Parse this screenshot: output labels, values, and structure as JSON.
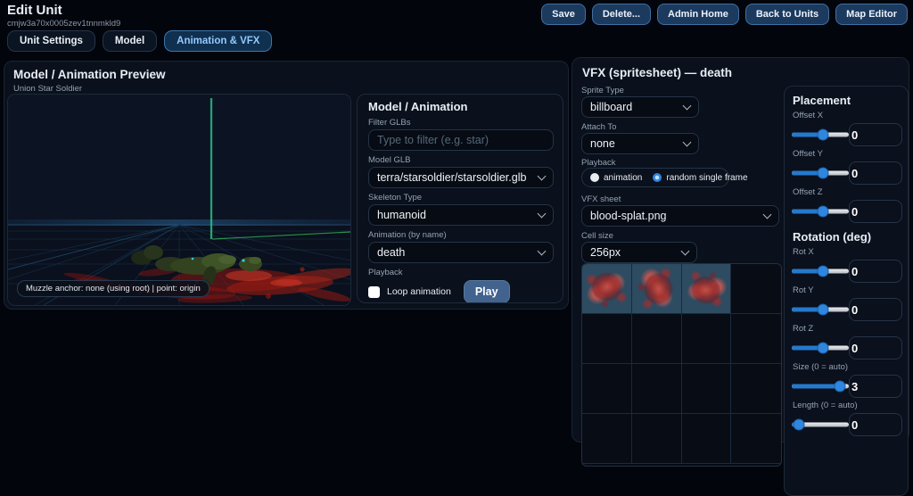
{
  "header": {
    "title": "Edit Unit",
    "unit_id": "cmjw3a70x0005zev1tnnmkld9",
    "buttons": [
      "Save",
      "Delete...",
      "Admin Home",
      "Back to Units",
      "Map Editor"
    ]
  },
  "tabs": [
    {
      "label": "Unit Settings",
      "active": false
    },
    {
      "label": "Model",
      "active": false
    },
    {
      "label": "Animation & VFX",
      "active": true
    }
  ],
  "preview_panel": {
    "title": "Model / Animation Preview",
    "subtitle": "Union Star Soldier",
    "muzzle_badge": "Muzzle anchor: none (using root) | point: origin"
  },
  "model_panel": {
    "title": "Model / Animation",
    "filter_label": "Filter GLBs",
    "filter_placeholder": "Type to filter (e.g. star)",
    "model_glb_label": "Model GLB",
    "model_glb_value": "terra/starsoldier/starsoldier.glb",
    "skeleton_label": "Skeleton Type",
    "skeleton_value": "humanoid",
    "animation_label": "Animation (by name)",
    "animation_value": "death",
    "playback_label": "Playback",
    "loop_label": "Loop animation",
    "loop_checked": false,
    "play_label": "Play"
  },
  "vfx_panel": {
    "title": "VFX (spritesheet) — death",
    "sprite_type_label": "Sprite Type",
    "sprite_type_value": "billboard",
    "attach_label": "Attach To",
    "attach_value": "none",
    "playback_label": "Playback",
    "radios": [
      {
        "label": "animation",
        "selected": false
      },
      {
        "label": "random single frame",
        "selected": true
      }
    ],
    "vfx_sheet_label": "VFX sheet",
    "vfx_sheet_value": "blood-splat.png",
    "cell_size_label": "Cell size",
    "cell_size_value": "256px",
    "grid": {
      "cols": 4,
      "rows": 4,
      "highlighted_frames": 3
    }
  },
  "placement_panel": {
    "title": "Placement",
    "rotation_title": "Rotation (deg)",
    "sliders": [
      {
        "label": "Offset X",
        "value": "0",
        "pos_pct": 55
      },
      {
        "label": "Offset Y",
        "value": "0",
        "pos_pct": 55
      },
      {
        "label": "Offset Z",
        "value": "0",
        "pos_pct": 55
      },
      {
        "label": "Rot X",
        "value": "0",
        "pos_pct": 55
      },
      {
        "label": "Rot Y",
        "value": "0",
        "pos_pct": 55
      },
      {
        "label": "Rot Z",
        "value": "0",
        "pos_pct": 55
      },
      {
        "label": "Size (0 = auto)",
        "value": "3",
        "pos_pct": 85
      },
      {
        "label": "Length (0 = auto)",
        "value": "0",
        "pos_pct": 12
      }
    ]
  },
  "colors": {
    "accent_blue": "#2e86de",
    "tab_active_text": "#93c9ff",
    "blood_red": "#a61d12",
    "beacon_green": "#2ec98c"
  }
}
